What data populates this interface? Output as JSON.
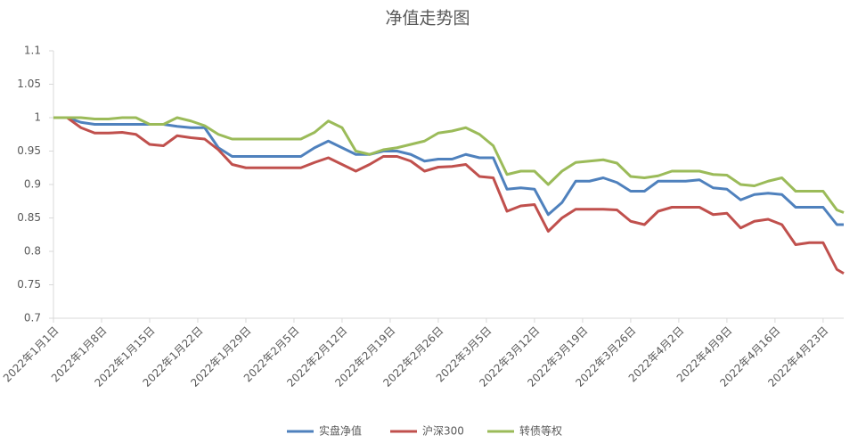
{
  "chart_data": {
    "type": "line",
    "title": "净值走势图",
    "x": [
      "2022-01-01",
      "2022-01-03",
      "2022-01-05",
      "2022-01-07",
      "2022-01-09",
      "2022-01-11",
      "2022-01-13",
      "2022-01-15",
      "2022-01-17",
      "2022-01-19",
      "2022-01-21",
      "2022-01-23",
      "2022-01-25",
      "2022-01-27",
      "2022-01-29",
      "2022-01-31",
      "2022-02-02",
      "2022-02-04",
      "2022-02-06",
      "2022-02-08",
      "2022-02-10",
      "2022-02-12",
      "2022-02-14",
      "2022-02-16",
      "2022-02-18",
      "2022-02-20",
      "2022-02-22",
      "2022-02-24",
      "2022-02-26",
      "2022-02-28",
      "2022-03-02",
      "2022-03-04",
      "2022-03-06",
      "2022-03-08",
      "2022-03-10",
      "2022-03-12",
      "2022-03-14",
      "2022-03-16",
      "2022-03-18",
      "2022-03-20",
      "2022-03-22",
      "2022-03-24",
      "2022-03-26",
      "2022-03-28",
      "2022-03-30",
      "2022-04-01",
      "2022-04-03",
      "2022-04-05",
      "2022-04-07",
      "2022-04-09",
      "2022-04-11",
      "2022-04-13",
      "2022-04-15",
      "2022-04-17",
      "2022-04-19",
      "2022-04-21",
      "2022-04-23",
      "2022-04-25",
      "2022-04-26"
    ],
    "series": [
      {
        "name": "实盘净值",
        "color": "#4f81bd",
        "values": [
          1,
          1,
          0.993,
          0.99,
          0.99,
          0.99,
          0.99,
          0.99,
          0.99,
          0.987,
          0.985,
          0.985,
          0.955,
          0.942,
          0.942,
          0.942,
          0.942,
          0.942,
          0.942,
          0.955,
          0.965,
          0.955,
          0.945,
          0.945,
          0.95,
          0.95,
          0.945,
          0.935,
          0.938,
          0.938,
          0.945,
          0.94,
          0.94,
          0.893,
          0.895,
          0.893,
          0.855,
          0.873,
          0.905,
          0.905,
          0.91,
          0.903,
          0.89,
          0.89,
          0.905,
          0.905,
          0.905,
          0.907,
          0.895,
          0.893,
          0.877,
          0.885,
          0.887,
          0.885,
          0.866,
          0.866,
          0.866,
          0.84,
          0.84
        ]
      },
      {
        "name": "沪深300",
        "color": "#c0504d",
        "values": [
          1,
          1,
          0.985,
          0.977,
          0.977,
          0.978,
          0.975,
          0.96,
          0.958,
          0.973,
          0.97,
          0.968,
          0.952,
          0.93,
          0.925,
          0.925,
          0.925,
          0.925,
          0.925,
          0.933,
          0.94,
          0.93,
          0.92,
          0.93,
          0.942,
          0.942,
          0.935,
          0.92,
          0.926,
          0.927,
          0.93,
          0.912,
          0.91,
          0.86,
          0.868,
          0.87,
          0.83,
          0.85,
          0.863,
          0.863,
          0.863,
          0.862,
          0.845,
          0.84,
          0.86,
          0.866,
          0.866,
          0.866,
          0.855,
          0.857,
          0.835,
          0.845,
          0.848,
          0.84,
          0.81,
          0.813,
          0.813,
          0.773,
          0.767
        ]
      },
      {
        "name": "转债等权",
        "color": "#9bbb59",
        "values": [
          1,
          1,
          1,
          0.998,
          0.998,
          1,
          1,
          0.99,
          0.99,
          1,
          0.995,
          0.988,
          0.975,
          0.968,
          0.968,
          0.968,
          0.968,
          0.968,
          0.968,
          0.978,
          0.995,
          0.985,
          0.95,
          0.945,
          0.952,
          0.955,
          0.96,
          0.965,
          0.977,
          0.98,
          0.985,
          0.975,
          0.958,
          0.915,
          0.92,
          0.92,
          0.9,
          0.92,
          0.933,
          0.935,
          0.937,
          0.932,
          0.912,
          0.91,
          0.913,
          0.92,
          0.92,
          0.92,
          0.915,
          0.914,
          0.9,
          0.898,
          0.905,
          0.91,
          0.89,
          0.89,
          0.89,
          0.862,
          0.858
        ]
      }
    ],
    "xlim": [
      "2022-01-01",
      "2022-04-26"
    ],
    "xticks": [
      {
        "value": "2022-01-01",
        "label": "2022年1月1日"
      },
      {
        "value": "2022-01-08",
        "label": "2022年1月8日"
      },
      {
        "value": "2022-01-15",
        "label": "2022年1月15日"
      },
      {
        "value": "2022-01-22",
        "label": "2022年1月22日"
      },
      {
        "value": "2022-01-29",
        "label": "2022年1月29日"
      },
      {
        "value": "2022-02-05",
        "label": "2022年2月5日"
      },
      {
        "value": "2022-02-12",
        "label": "2022年2月12日"
      },
      {
        "value": "2022-02-19",
        "label": "2022年2月19日"
      },
      {
        "value": "2022-02-26",
        "label": "2022年2月26日"
      },
      {
        "value": "2022-03-05",
        "label": "2022年3月5日"
      },
      {
        "value": "2022-03-12",
        "label": "2022年3月12日"
      },
      {
        "value": "2022-03-19",
        "label": "2022年3月19日"
      },
      {
        "value": "2022-03-26",
        "label": "2022年3月26日"
      },
      {
        "value": "2022-04-02",
        "label": "2022年4月2日"
      },
      {
        "value": "2022-04-09",
        "label": "2022年4月9日"
      },
      {
        "value": "2022-04-16",
        "label": "2022年4月16日"
      },
      {
        "value": "2022-04-23",
        "label": "2022年4月23日"
      }
    ],
    "ylim": [
      0.7,
      1.1
    ],
    "yticks": [
      0.7,
      0.75,
      0.8,
      0.85,
      0.9,
      0.95,
      1,
      1.05,
      1.1
    ],
    "grid": false
  }
}
